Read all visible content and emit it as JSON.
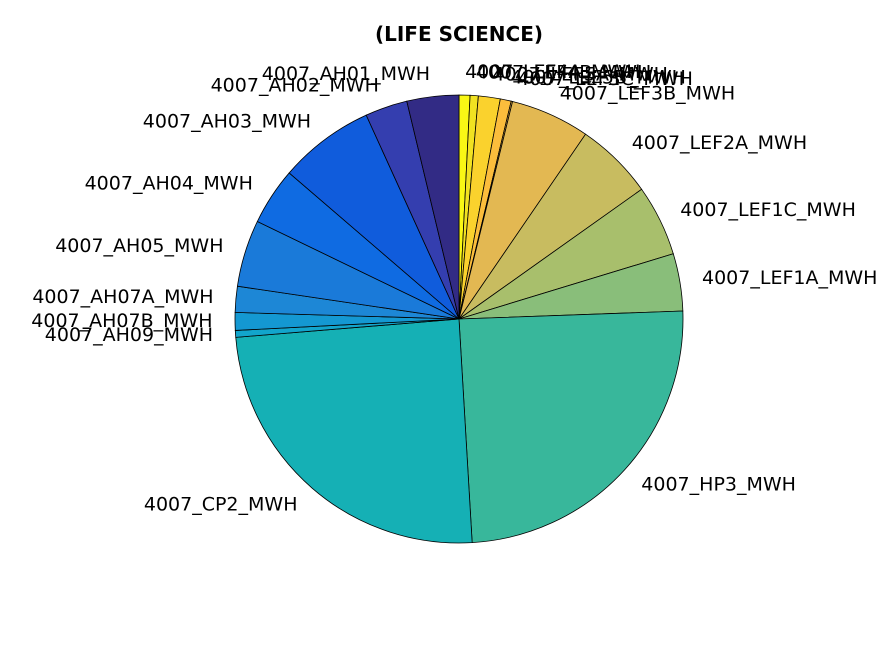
{
  "chart_data": {
    "type": "pie",
    "title": "(LIFE SCIENCE)",
    "start_angle_deg": 90,
    "direction": "clockwise",
    "slices": [
      {
        "label": "4007_LEF4A_MWH",
        "value": 0.8,
        "color": "#f9f715"
      },
      {
        "label": "4007_LEF4B_MWH",
        "value": 0.6,
        "color": "#f1e221"
      },
      {
        "label": "4007_LEF5A_MWH",
        "value": 1.6,
        "color": "#fad22d"
      },
      {
        "label": "4007_LEF5B_MWH",
        "value": 0.8,
        "color": "#fbbd3c"
      },
      {
        "label": "4007_LEF3C_MWH",
        "value": 0.1,
        "color": "#f5b940"
      },
      {
        "label": "4007_LEF3B_MWH",
        "value": 5.8,
        "color": "#e3b852"
      },
      {
        "label": "4007_LEF2A_MWH",
        "value": 5.7,
        "color": "#c8bc60"
      },
      {
        "label": "4007_LEF1C_MWH",
        "value": 5.2,
        "color": "#a8bf6c"
      },
      {
        "label": "4007_LEF1A_MWH",
        "value": 4.2,
        "color": "#89be7a"
      },
      {
        "label": "4007_HP3_MWH",
        "value": 25.0,
        "color": "#38b79b"
      },
      {
        "label": "4007_CP2_MWH",
        "value": 25.0,
        "color": "#15b0b5"
      },
      {
        "label": "4007_AH09_MWH",
        "value": 0.5,
        "color": "#12a5cc"
      },
      {
        "label": "4007_AH07B_MWH",
        "value": 1.3,
        "color": "#1498d2"
      },
      {
        "label": "4007_AH07A_MWH",
        "value": 1.9,
        "color": "#1d87d6"
      },
      {
        "label": "4007_AH05_MWH",
        "value": 4.9,
        "color": "#1a7ad9"
      },
      {
        "label": "4007_AH04_MWH",
        "value": 4.2,
        "color": "#0f6be2"
      },
      {
        "label": "4007_AH03_MWH",
        "value": 7.0,
        "color": "#105cdc"
      },
      {
        "label": "4007_AH02_MWH",
        "value": 3.1,
        "color": "#343eaf"
      },
      {
        "label": "4007_AH01_MWH",
        "value": 3.8,
        "color": "#322b85"
      }
    ]
  }
}
